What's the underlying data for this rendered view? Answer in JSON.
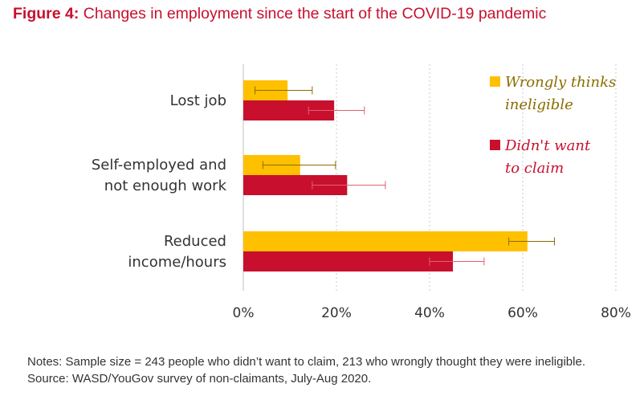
{
  "title": {
    "number": "Figure 4:",
    "text": "Changes in employment since the start of the COVID-19 pandemic"
  },
  "notes": "Notes: Sample size = 243 people who didn’t want to claim, 213 who wrongly thought they were ineligible. Source: WASD/YouGov survey of non-claimants, July-Aug 2020.",
  "chart_data": {
    "type": "bar",
    "orientation": "horizontal",
    "categories": [
      {
        "lines": [
          "Lost job"
        ]
      },
      {
        "lines": [
          "Self-employed and",
          "not enough work"
        ]
      },
      {
        "lines": [
          "Reduced",
          "income/hours"
        ]
      }
    ],
    "series": [
      {
        "name": "Wrongly thinks ineligible",
        "legend_lines": [
          "Wrongly thinks",
          "ineligible"
        ],
        "color": "#ffc000",
        "values": [
          9.5,
          12.2,
          61.0
        ],
        "error_low": [
          2.5,
          4.2,
          57.0
        ],
        "error_high": [
          14.8,
          19.8,
          66.8
        ]
      },
      {
        "name": "Didn't want to claim",
        "legend_lines": [
          "Didn't want",
          "to claim"
        ],
        "color": "#c8102e",
        "values": [
          19.5,
          22.3,
          45.0
        ],
        "error_low": [
          14.0,
          14.8,
          40.0
        ],
        "error_high": [
          26.0,
          30.5,
          51.7
        ]
      }
    ],
    "xlim": [
      0,
      80
    ],
    "xticks": [
      0,
      20,
      40,
      60,
      80
    ],
    "tick_suffix": "%",
    "grid": "vertical dotted",
    "legend": "top-right",
    "error_color": "#8a6d00",
    "error_color_2": "#e06070"
  }
}
